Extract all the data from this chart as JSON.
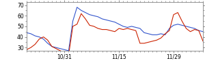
{
  "xlim": [
    0,
    42
  ],
  "ylim": [
    27,
    73
  ],
  "yticks": [
    30,
    40,
    50,
    60,
    70
  ],
  "xtick_positions": [
    9,
    22,
    35
  ],
  "xtick_labels": [
    "10/31",
    "11/15",
    "11/29"
  ],
  "blue_line": [
    44,
    43,
    41,
    40,
    38,
    34,
    31,
    30,
    29,
    28,
    27,
    55,
    68,
    65,
    63,
    61,
    60,
    59,
    57,
    56,
    55,
    54,
    52,
    50,
    49,
    50,
    49,
    48,
    44,
    43,
    42,
    42,
    43,
    42,
    48,
    51,
    52,
    51,
    50,
    49,
    48,
    46,
    45
  ],
  "red_line": [
    28,
    30,
    33,
    38,
    40,
    37,
    31,
    29,
    27,
    25,
    23,
    50,
    52,
    62,
    57,
    51,
    50,
    48,
    47,
    47,
    46,
    45,
    48,
    47,
    48,
    47,
    46,
    34,
    34,
    35,
    36,
    37,
    39,
    43,
    46,
    61,
    63,
    55,
    48,
    45,
    47,
    46,
    36
  ],
  "blue_color": "#3355cc",
  "red_color": "#cc2200",
  "bg_color": "#ffffff",
  "linewidth": 0.8
}
